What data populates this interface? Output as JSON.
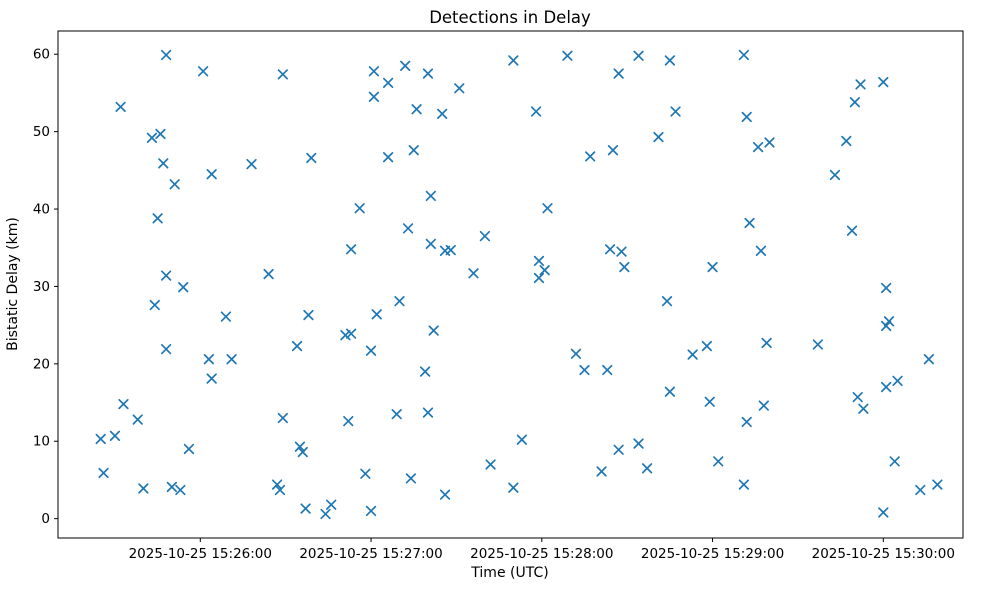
{
  "title": "Detections in Delay",
  "chart_data": {
    "type": "scatter",
    "title": "Detections in Delay",
    "xlabel": "Time (UTC)",
    "ylabel": "Bistatic Delay (km)",
    "marker": "x",
    "marker_color": "#1f77b4",
    "grid": false,
    "legend_position": "none",
    "x_encoding": "seconds after 2025-10-25 15:25:00 UTC",
    "xlim": [
      10,
      328
    ],
    "ylim": [
      -2.5,
      63
    ],
    "x_ticks": [
      {
        "t": 60,
        "label": "2025-10-25 15:26:00"
      },
      {
        "t": 120,
        "label": "2025-10-25 15:27:00"
      },
      {
        "t": 180,
        "label": "2025-10-25 15:28:00"
      },
      {
        "t": 240,
        "label": "2025-10-25 15:29:00"
      },
      {
        "t": 300,
        "label": "2025-10-25 15:30:00"
      }
    ],
    "y_ticks": [
      0,
      10,
      20,
      30,
      40,
      50,
      60
    ],
    "points": [
      [
        48,
        59.9
      ],
      [
        61,
        57.8
      ],
      [
        89,
        57.4
      ],
      [
        32,
        53.2
      ],
      [
        43,
        49.2
      ],
      [
        46,
        49.7
      ],
      [
        47,
        45.9
      ],
      [
        64,
        44.5
      ],
      [
        78,
        45.8
      ],
      [
        51,
        43.2
      ],
      [
        45,
        38.8
      ],
      [
        48,
        31.4
      ],
      [
        84,
        31.6
      ],
      [
        54,
        29.9
      ],
      [
        44,
        27.6
      ],
      [
        69,
        26.1
      ],
      [
        48,
        21.9
      ],
      [
        63,
        20.6
      ],
      [
        71,
        20.6
      ],
      [
        64,
        18.1
      ],
      [
        33,
        14.8
      ],
      [
        38,
        12.8
      ],
      [
        25,
        10.3
      ],
      [
        30,
        10.7
      ],
      [
        56,
        9.0
      ],
      [
        26,
        5.9
      ],
      [
        40,
        3.9
      ],
      [
        50,
        4.1
      ],
      [
        53,
        3.7
      ],
      [
        89,
        13.0
      ],
      [
        87,
        4.4
      ],
      [
        88,
        3.7
      ],
      [
        121,
        57.8
      ],
      [
        132,
        58.5
      ],
      [
        140,
        57.5
      ],
      [
        126,
        56.3
      ],
      [
        151,
        55.6
      ],
      [
        121,
        54.5
      ],
      [
        136,
        52.9
      ],
      [
        145,
        52.3
      ],
      [
        170,
        59.2
      ],
      [
        99,
        46.6
      ],
      [
        126,
        46.7
      ],
      [
        135,
        47.6
      ],
      [
        141,
        41.7
      ],
      [
        116,
        40.1
      ],
      [
        133,
        37.5
      ],
      [
        141,
        35.5
      ],
      [
        146,
        34.6
      ],
      [
        148,
        34.7
      ],
      [
        160,
        36.5
      ],
      [
        113,
        34.8
      ],
      [
        156,
        31.7
      ],
      [
        130,
        28.1
      ],
      [
        98,
        26.3
      ],
      [
        122,
        26.4
      ],
      [
        142,
        24.3
      ],
      [
        111,
        23.7
      ],
      [
        113,
        23.9
      ],
      [
        94,
        22.3
      ],
      [
        120,
        21.7
      ],
      [
        139,
        19.0
      ],
      [
        112,
        12.6
      ],
      [
        129,
        13.5
      ],
      [
        140,
        13.7
      ],
      [
        95,
        9.3
      ],
      [
        96,
        8.6
      ],
      [
        118,
        5.8
      ],
      [
        134,
        5.2
      ],
      [
        162,
        7.0
      ],
      [
        146,
        3.1
      ],
      [
        170,
        4.0
      ],
      [
        97,
        1.3
      ],
      [
        104,
        0.6
      ],
      [
        106,
        1.8
      ],
      [
        120,
        1.0
      ],
      [
        189,
        59.8
      ],
      [
        214,
        59.8
      ],
      [
        225,
        59.2
      ],
      [
        207,
        57.5
      ],
      [
        178,
        52.6
      ],
      [
        227,
        52.6
      ],
      [
        221,
        49.3
      ],
      [
        205,
        47.6
      ],
      [
        197,
        46.8
      ],
      [
        182,
        40.1
      ],
      [
        204,
        34.8
      ],
      [
        208,
        34.5
      ],
      [
        179,
        33.3
      ],
      [
        209,
        32.5
      ],
      [
        181,
        32.1
      ],
      [
        179,
        31.1
      ],
      [
        240,
        32.5
      ],
      [
        224,
        28.1
      ],
      [
        192,
        21.3
      ],
      [
        233,
        21.2
      ],
      [
        238,
        22.3
      ],
      [
        195,
        19.2
      ],
      [
        203,
        19.2
      ],
      [
        225,
        16.4
      ],
      [
        239,
        15.1
      ],
      [
        173,
        10.2
      ],
      [
        207,
        8.9
      ],
      [
        214,
        9.7
      ],
      [
        201,
        6.1
      ],
      [
        217,
        6.5
      ],
      [
        242,
        7.4
      ],
      [
        251,
        59.9
      ],
      [
        292,
        56.1
      ],
      [
        300,
        56.4
      ],
      [
        290,
        53.8
      ],
      [
        252,
        51.9
      ],
      [
        256,
        48.0
      ],
      [
        260,
        48.6
      ],
      [
        287,
        48.8
      ],
      [
        283,
        44.4
      ],
      [
        253,
        38.2
      ],
      [
        289,
        37.2
      ],
      [
        257,
        34.6
      ],
      [
        301,
        29.8
      ],
      [
        302,
        25.5
      ],
      [
        301,
        24.9
      ],
      [
        259,
        22.7
      ],
      [
        277,
        22.5
      ],
      [
        316,
        20.6
      ],
      [
        305,
        17.8
      ],
      [
        301,
        17.0
      ],
      [
        291,
        15.7
      ],
      [
        293,
        14.2
      ],
      [
        258,
        14.6
      ],
      [
        252,
        12.5
      ],
      [
        304,
        7.4
      ],
      [
        251,
        4.4
      ],
      [
        313,
        3.7
      ],
      [
        319,
        4.4
      ],
      [
        300,
        0.8
      ]
    ]
  }
}
